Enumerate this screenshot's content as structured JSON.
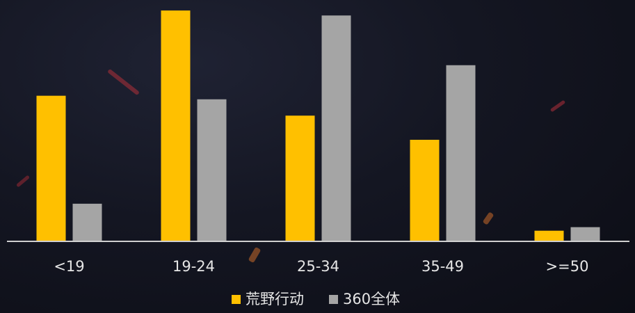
{
  "chart_data": {
    "type": "bar",
    "categories": [
      "<19",
      "19-24",
      "25-34",
      "35-49",
      ">=50"
    ],
    "series": [
      {
        "name": "荒野行动",
        "color": "#FFC000",
        "values": [
          20.5,
          32.5,
          17.7,
          14.3,
          1.5
        ]
      },
      {
        "name": "360全体",
        "color": "#A5A5A5",
        "values": [
          5.3,
          20.0,
          31.8,
          24.8,
          2.0
        ]
      }
    ],
    "title": "",
    "xlabel": "",
    "ylabel": "",
    "ylim": [
      0,
      33
    ],
    "grid": false,
    "legend": "bottom"
  }
}
